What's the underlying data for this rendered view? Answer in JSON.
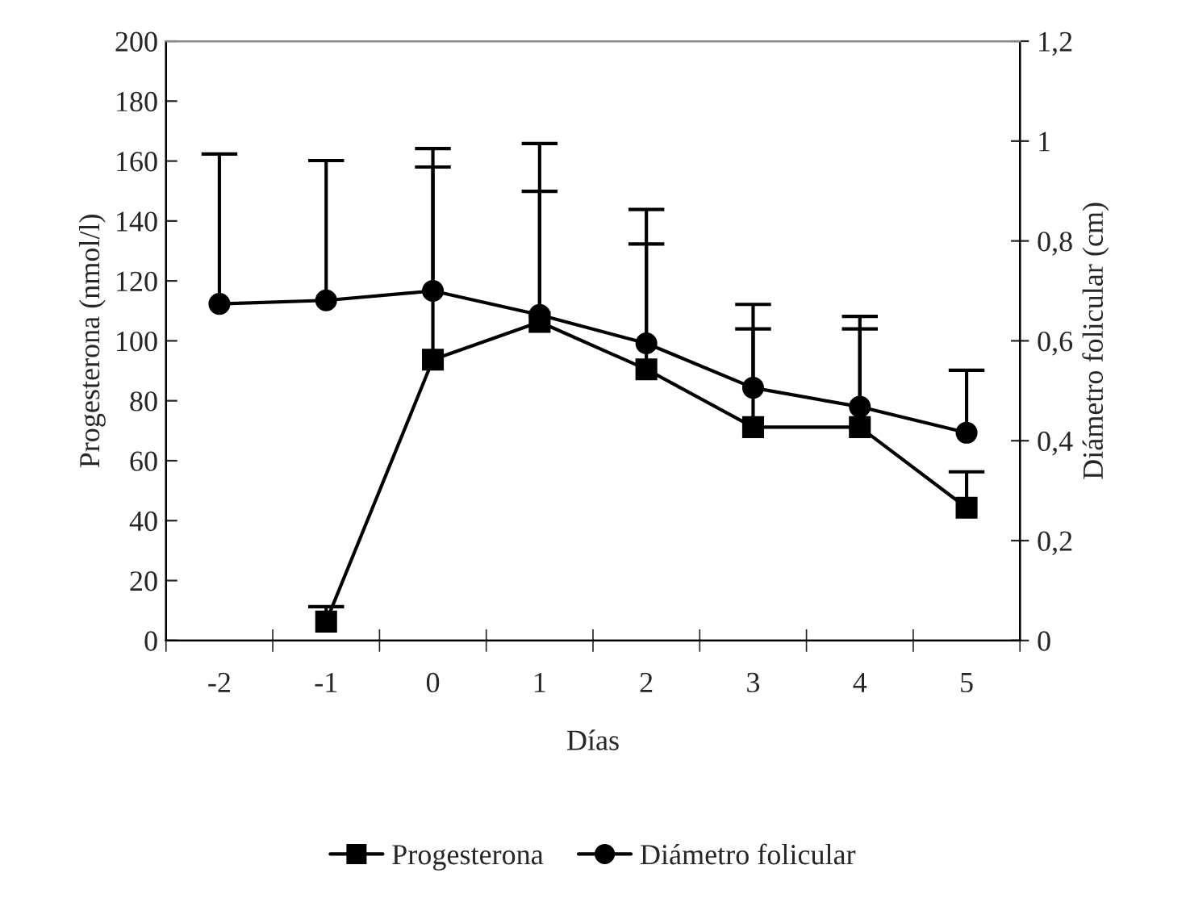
{
  "chart_data": {
    "type": "line",
    "xlabel": "Días",
    "ylabel": "Progesterona (nmol/l)",
    "y2label": "Diámetro folicular (cm)",
    "categories": [
      "-2",
      "-1",
      "0",
      "1",
      "2",
      "3",
      "4",
      "5"
    ],
    "series": [
      {
        "name": "Progesterona",
        "color": "#000000",
        "marker": "square",
        "values": [
          null,
          6.3,
          93.7,
          106.3,
          90.5,
          71.2,
          71.2,
          44.3
        ],
        "errors": [
          null,
          [
            6.3,
            11.3
          ],
          [
            93.7,
            158
          ],
          [
            106.3,
            149.9
          ],
          [
            90.5,
            132.3
          ],
          [
            71.2,
            104
          ],
          [
            71.2,
            104
          ],
          [
            44.3,
            56.3
          ]
        ]
      },
      {
        "name": "Diámetro folicular",
        "color": "#000000",
        "marker": "circle",
        "axis": "y2",
        "values": [
          0.674,
          0.681,
          0.7,
          0.652,
          0.595,
          0.506,
          0.468,
          0.416
        ],
        "errors": [
          [
            0.674,
            0.974
          ],
          [
            0.681,
            0.961
          ],
          [
            0.7,
            0.985
          ],
          [
            0.652,
            0.995
          ],
          [
            0.595,
            0.863
          ],
          [
            0.506,
            0.673
          ],
          [
            0.468,
            0.649
          ],
          [
            0.416,
            0.541
          ]
        ]
      }
    ],
    "ylim": [
      0,
      200
    ],
    "yticks": [
      0,
      20,
      40,
      60,
      80,
      100,
      120,
      140,
      160,
      180,
      200
    ],
    "y2lim": [
      0,
      1.2
    ],
    "y2ticks": [
      0,
      {
        "value": 0.2,
        "label": "0,2"
      },
      {
        "value": 0.4,
        "label": "0,4"
      },
      {
        "value": 0.6,
        "label": "0,6"
      },
      {
        "value": 0.8,
        "label": "0,8"
      },
      1,
      {
        "value": 1.2,
        "label": "1,2"
      }
    ],
    "legend": "bottom",
    "grid": false,
    "line_style": "solid"
  }
}
